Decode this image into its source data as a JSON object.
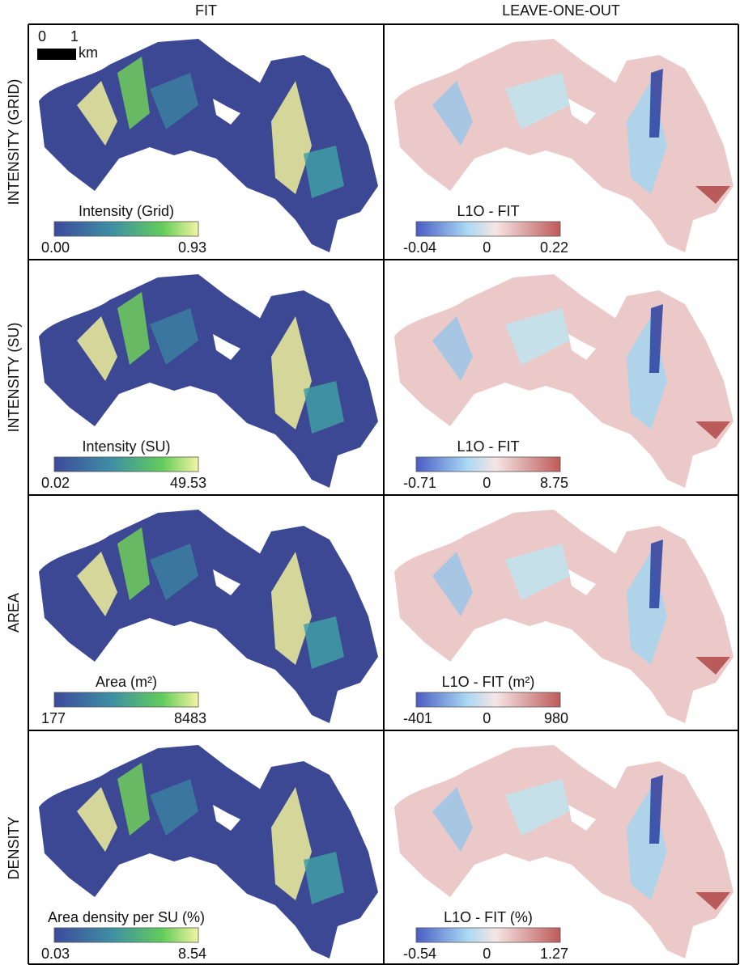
{
  "columns": [
    "FIT",
    "LEAVE-ONE-OUT"
  ],
  "scale_bar": {
    "ticks": [
      "0",
      "1"
    ],
    "unit": "km"
  },
  "rows": [
    {
      "label": "INTENSITY (GRID)",
      "fit": {
        "title": "Intensity (Grid)",
        "min": "0.00",
        "max": "0.93"
      },
      "l1o": {
        "title": "L1O - FIT",
        "min": "-0.04",
        "zero": "0",
        "max": "0.22"
      }
    },
    {
      "label": "INTENSITY (SU)",
      "fit": {
        "title": "Intensity (SU)",
        "min": "0.02",
        "max": "49.53"
      },
      "l1o": {
        "title": "L1O - FIT",
        "min": "-0.71",
        "zero": "0",
        "max": "8.75"
      }
    },
    {
      "label": "AREA",
      "fit": {
        "title": "Area (m²)",
        "min": "177",
        "max": "8483"
      },
      "l1o": {
        "title": "L1O - FIT (m²)",
        "min": "-401",
        "zero": "0",
        "max": "980"
      }
    },
    {
      "label": "DENSITY",
      "fit": {
        "title": "Area density per SU (%)",
        "min": "0.03",
        "max": "8.54"
      },
      "l1o": {
        "title": "L1O - FIT (%)",
        "min": "-0.54",
        "zero": "0",
        "max": "1.27"
      }
    }
  ]
}
